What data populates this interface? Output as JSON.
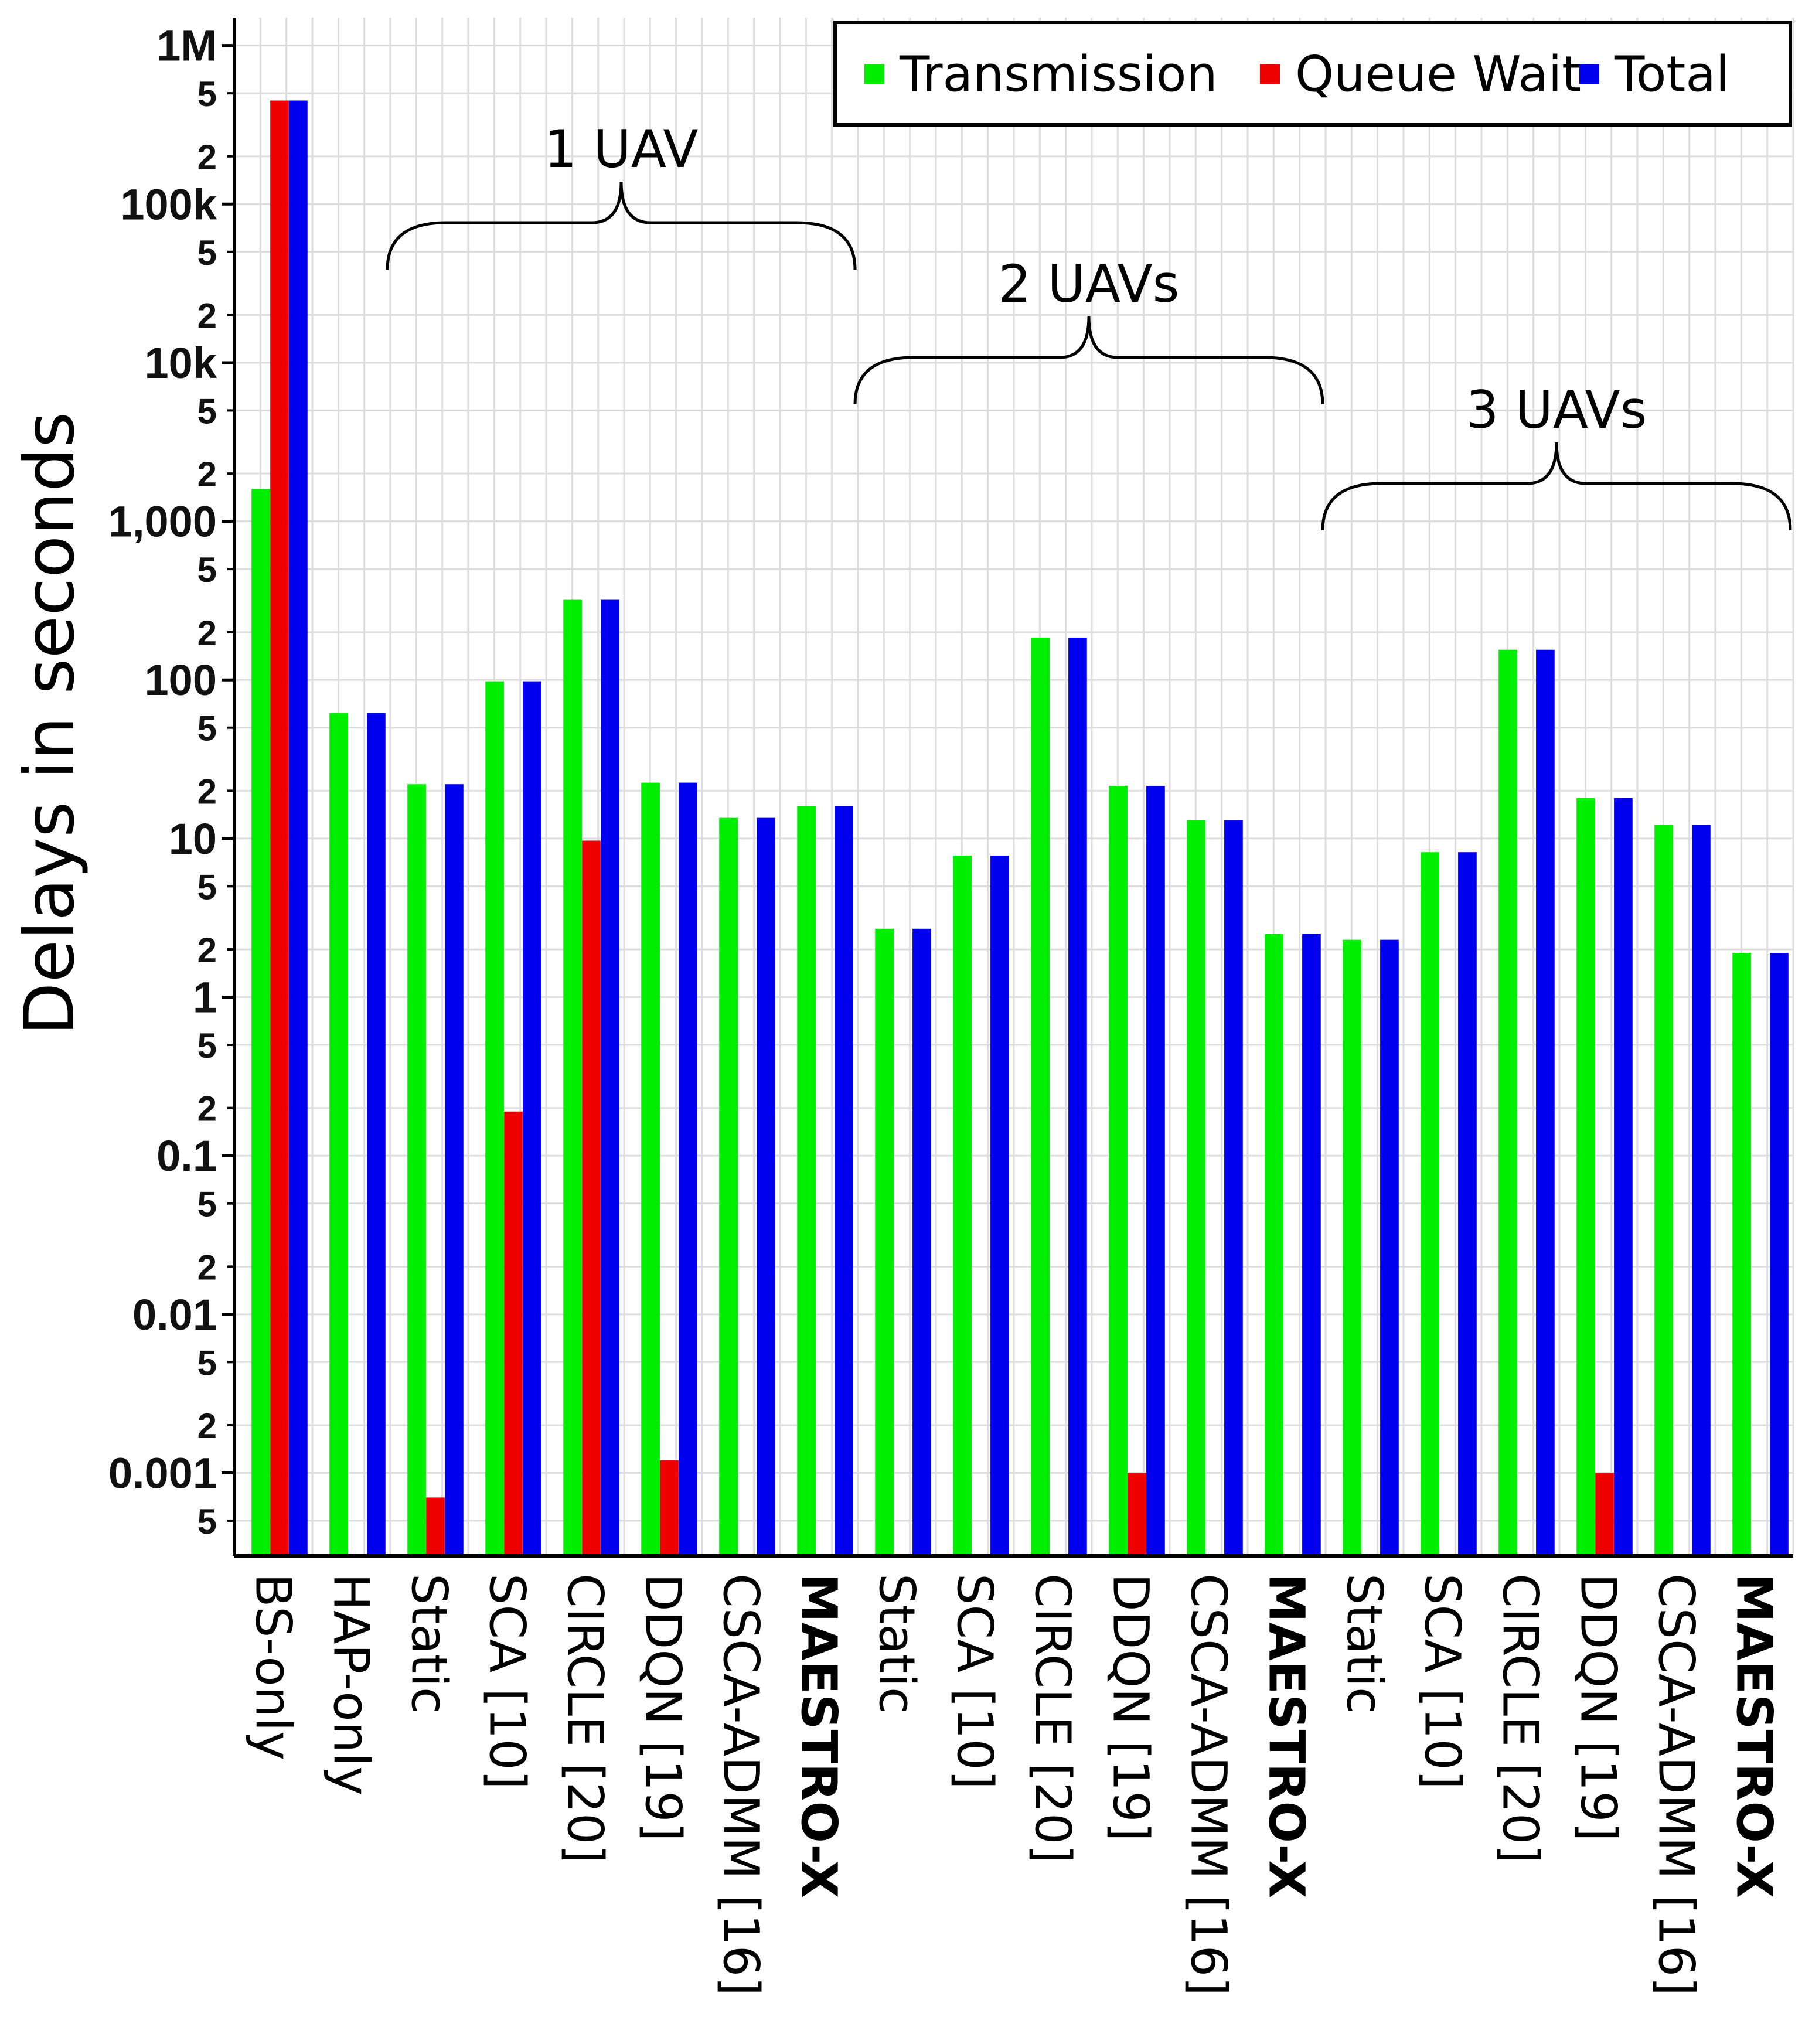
{
  "chart_data": {
    "type": "bar",
    "title": "",
    "xlabel": "",
    "ylabel": "Delays in seconds",
    "yscale": "log",
    "ylim": [
      0.0003,
      1500000
    ],
    "grid": true,
    "legend_position": "top-right",
    "y_major_ticks": [
      {
        "value": 1000000,
        "label": "1M"
      },
      {
        "value": 100000,
        "label": "100k"
      },
      {
        "value": 10000,
        "label": "10k"
      },
      {
        "value": 1000,
        "label": "1,000"
      },
      {
        "value": 100,
        "label": "100"
      },
      {
        "value": 10,
        "label": "10"
      },
      {
        "value": 1,
        "label": "1"
      },
      {
        "value": 0.1,
        "label": "0.1"
      },
      {
        "value": 0.01,
        "label": "0.01"
      },
      {
        "value": 0.001,
        "label": "0.001"
      }
    ],
    "y_minor_tick_labels": [
      "2",
      "5"
    ],
    "categories": [
      "BS-only",
      "HAP-only",
      "Static",
      "SCA [10]",
      "CIRCLE [20]",
      "DDQN [19]",
      "CSCA-ADMM [16]",
      "MAESTRO-X",
      "Static",
      "SCA [10]",
      "CIRCLE [20]",
      "DDQN [19]",
      "CSCA-ADMM [16]",
      "MAESTRO-X",
      "Static",
      "SCA [10]",
      "CIRCLE [20]",
      "DDQN [19]",
      "CSCA-ADMM [16]",
      "MAESTRO-X"
    ],
    "highlight_category": "MAESTRO-X",
    "series": [
      {
        "name": "Transmission",
        "color": "#00ee00",
        "values": [
          1600,
          62,
          22,
          98,
          320,
          22.5,
          13.5,
          16,
          2.7,
          7.8,
          185,
          21.5,
          13,
          2.5,
          2.3,
          8.2,
          155,
          18,
          12.2,
          1.9
        ]
      },
      {
        "name": "Queue Wait",
        "color": "#ee0000",
        "values": [
          450000,
          null,
          0.0007,
          0.19,
          9.7,
          0.0012,
          null,
          null,
          null,
          null,
          null,
          0.001,
          null,
          null,
          null,
          null,
          null,
          0.001,
          null,
          null
        ]
      },
      {
        "name": "Total",
        "color": "#0000ee",
        "values": [
          450000,
          62,
          22,
          98,
          320,
          22.5,
          13.5,
          16,
          2.7,
          7.8,
          185,
          21.5,
          13,
          2.5,
          2.3,
          8.2,
          155,
          18,
          12.2,
          1.9
        ]
      }
    ],
    "group_annotations": [
      {
        "label": "1 UAV",
        "from_index": 2,
        "to_index": 7
      },
      {
        "label": "2 UAVs",
        "from_index": 8,
        "to_index": 13
      },
      {
        "label": "3 UAVs",
        "from_index": 14,
        "to_index": 19
      }
    ],
    "colors": {
      "highlight_label": "#cc4400",
      "grid": "#dddddd"
    }
  }
}
